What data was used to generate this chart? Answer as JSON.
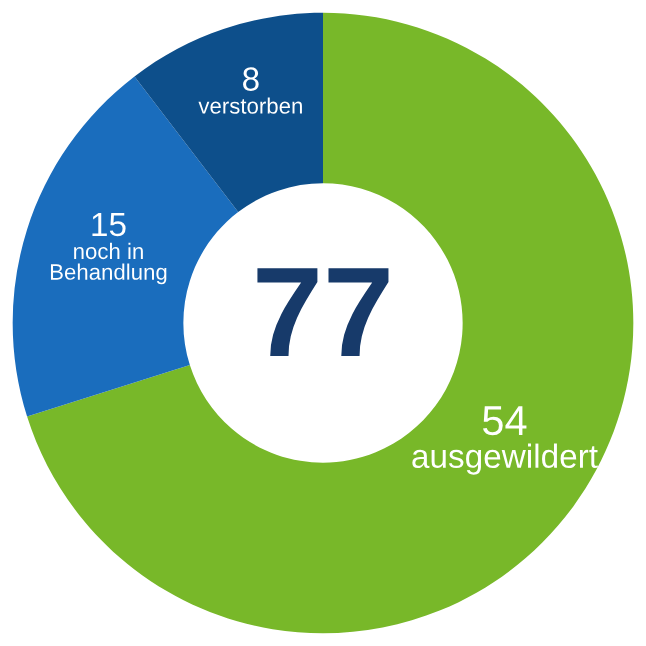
{
  "chart_data": {
    "type": "donut",
    "categories": [
      "ausgewildert",
      "noch in Behandlung",
      "verstorben"
    ],
    "values": [
      54,
      15,
      8
    ],
    "colors": [
      "#78b829",
      "#1a6dbd",
      "#0d4f8b"
    ],
    "data_labels": true,
    "annotations": [
      "77"
    ]
  }
}
